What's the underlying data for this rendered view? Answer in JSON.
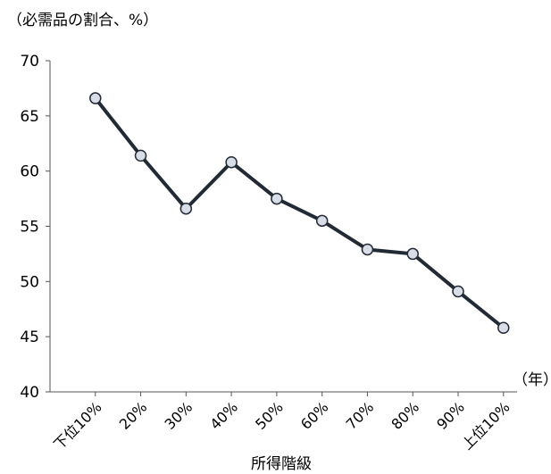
{
  "chart_data": {
    "type": "line",
    "title": "",
    "ylabel": "（必需品の割合、%）",
    "xlabel": "所得階級",
    "x_unit_label": "（年）",
    "categories": [
      "下位10%",
      "20%",
      "30%",
      "40%",
      "50%",
      "60%",
      "70%",
      "80%",
      "90%",
      "上位10%"
    ],
    "series": [
      {
        "values": [
          66.6,
          61.4,
          56.6,
          60.8,
          57.5,
          55.5,
          52.9,
          52.5,
          49.1,
          45.8
        ]
      }
    ],
    "ylim": [
      40,
      70
    ],
    "yticks": [
      40,
      45,
      50,
      55,
      60,
      65,
      70
    ],
    "grid": false,
    "legend": "none",
    "colors": {
      "line": "#222a36",
      "marker_fill": "#d9dde8",
      "marker_stroke": "#222a36",
      "axis": "#555555"
    }
  }
}
